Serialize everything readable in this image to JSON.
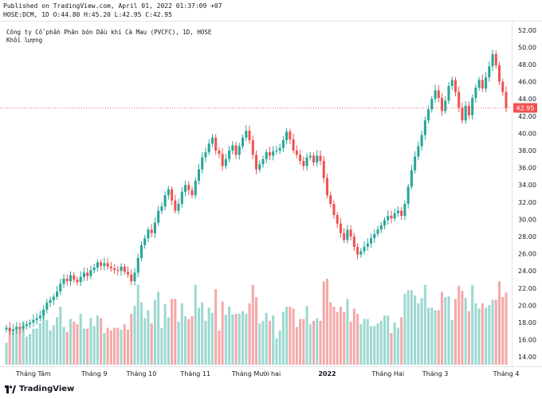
{
  "header": {
    "line1": "Published on TradingView.com, April 01, 2022 01:37:09 +07",
    "line2": "HOSE:DCM, 1D O:44.80 H:45.20 L:42.95 C:42.95"
  },
  "legend": {
    "title": "Công ty Cổ phần Phân bón Dầu khí Cà Mau (PVCFC), 1D, HOSE",
    "volume_label": "Khối lượng"
  },
  "brand": {
    "name": "TradingView"
  },
  "colors": {
    "up": "#26a69a",
    "down": "#ef5350",
    "vol_up": "#9ed8d1",
    "vol_down": "#f4a9a8",
    "price_line": "#ef5350"
  },
  "chart_data": {
    "type": "candlestick",
    "symbol": "HOSE:DCM",
    "interval": "1D",
    "last_price": 42.95,
    "last_price_label": "42.95",
    "ylim": [
      13,
      53
    ],
    "y_ticks": [
      14,
      16,
      18,
      20,
      22,
      24,
      26,
      28,
      30,
      32,
      34,
      36,
      38,
      40,
      42,
      44,
      46,
      48,
      50,
      52
    ],
    "y_tick_labels": [
      "14.00",
      "16.00",
      "18.00",
      "20.00",
      "22.00",
      "24.00",
      "26.00",
      "28.00",
      "30.00",
      "32.00",
      "34.00",
      "36.00",
      "38.00",
      "40.00",
      "42.00",
      "44.00",
      "46.00",
      "48.00",
      "50.00",
      "52.00"
    ],
    "x_ticks": [
      {
        "label": "Tháng Tám",
        "index": 8
      },
      {
        "label": "Tháng 9",
        "index": 26
      },
      {
        "label": "Tháng 10",
        "index": 40
      },
      {
        "label": "Tháng 11",
        "index": 56
      },
      {
        "label": "Tháng Mười hai",
        "index": 74
      },
      {
        "label": "2022",
        "index": 95
      },
      {
        "label": "Tháng Hai",
        "index": 113
      },
      {
        "label": "Tháng 3",
        "index": 127
      },
      {
        "label": "Tháng 4",
        "index": 148
      }
    ],
    "close": [
      17.4,
      17.0,
      17.2,
      17.5,
      17.3,
      17.6,
      17.8,
      18.0,
      18.3,
      18.5,
      18.8,
      19.5,
      20.3,
      20.6,
      21.0,
      21.6,
      22.5,
      23.1,
      22.8,
      23.5,
      23.0,
      22.7,
      23.3,
      23.8,
      23.4,
      24.1,
      24.4,
      25.0,
      24.6,
      24.9,
      24.5,
      24.3,
      24.1,
      24.0,
      24.5,
      23.9,
      23.6,
      22.8,
      23.8,
      25.5,
      27.0,
      27.8,
      28.8,
      28.4,
      29.6,
      31.0,
      31.5,
      32.8,
      33.5,
      32.2,
      31.0,
      31.8,
      33.2,
      34.0,
      33.4,
      32.8,
      34.5,
      35.8,
      37.2,
      37.8,
      38.8,
      39.5,
      38.0,
      37.6,
      36.2,
      37.0,
      38.0,
      38.6,
      37.5,
      38.5,
      39.5,
      40.3,
      39.2,
      37.5,
      35.8,
      36.4,
      37.0,
      37.8,
      37.4,
      37.9,
      38.0,
      38.3,
      39.2,
      40.2,
      39.3,
      38.0,
      37.5,
      36.8,
      36.2,
      37.2,
      37.4,
      36.6,
      37.4,
      36.8,
      34.8,
      32.8,
      31.8,
      30.5,
      29.5,
      28.4,
      27.6,
      28.8,
      28.0,
      26.8,
      25.9,
      26.3,
      26.8,
      27.2,
      27.8,
      28.3,
      28.8,
      29.3,
      29.9,
      30.4,
      30.1,
      30.7,
      31.0,
      30.4,
      31.8,
      33.8,
      35.7,
      37.3,
      38.5,
      39.8,
      41.5,
      42.8,
      44.0,
      45.0,
      44.1,
      42.6,
      43.8,
      45.5,
      46.2,
      44.8,
      43.0,
      41.5,
      43.2,
      42.1,
      44.1,
      45.3,
      46.2,
      45.2,
      46.5,
      47.8,
      49.2,
      47.9,
      46.0,
      44.8,
      42.95
    ]
  }
}
